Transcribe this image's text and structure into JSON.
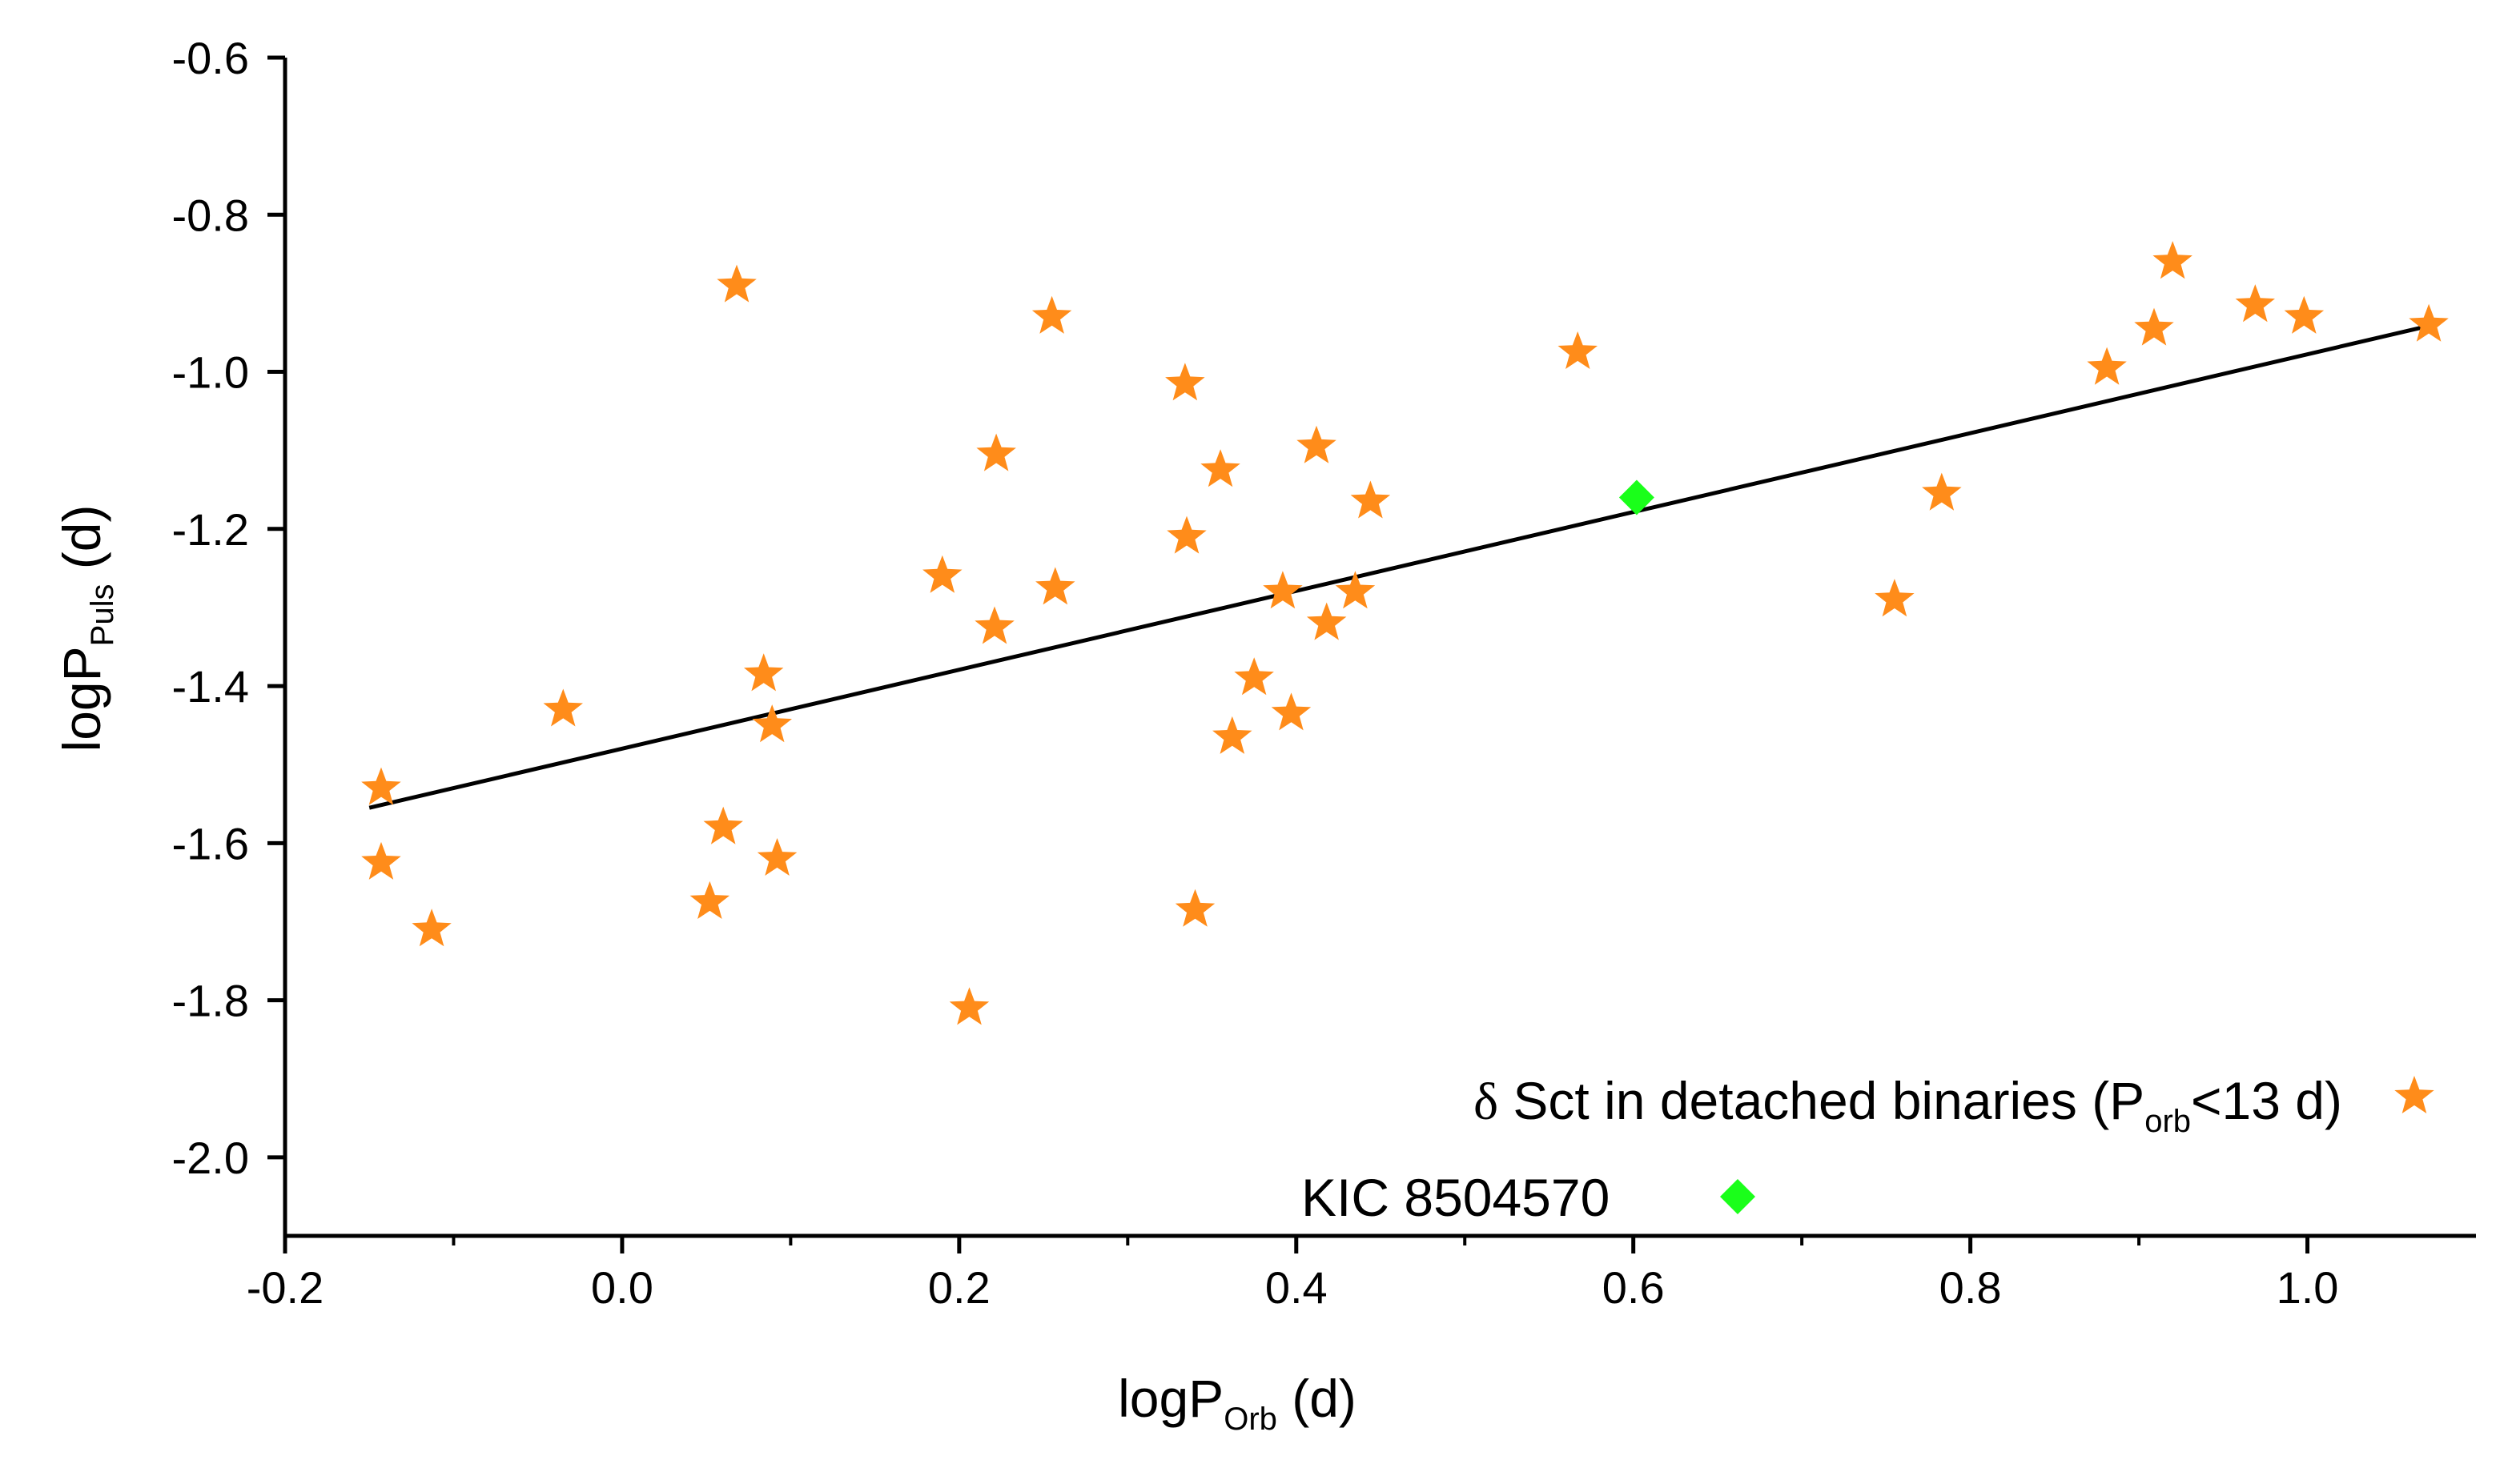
{
  "chart_data": {
    "type": "scatter",
    "xlabel": {
      "main": "logP",
      "sub": "Orb",
      "unit": " (d)"
    },
    "ylabel": {
      "main": "logP",
      "sub": "Puls",
      "unit": " (d)"
    },
    "xlim": [
      -0.2,
      1.1
    ],
    "ylim": [
      -2.1,
      -0.6
    ],
    "x_ticks": [
      -0.2,
      0.0,
      0.2,
      0.4,
      0.6,
      0.8,
      1.0
    ],
    "x_tick_labels": [
      "-0.2",
      "0.0",
      "0.2",
      "0.4",
      "0.6",
      "0.8",
      "1.0"
    ],
    "y_ticks": [
      -2.0,
      -1.8,
      -1.6,
      -1.4,
      -1.2,
      -1.0,
      -0.8,
      -0.6
    ],
    "y_tick_labels": [
      "-2.0",
      "-1.8",
      "-1.6",
      "-1.4",
      "-1.2",
      "-1.0",
      "-0.8",
      "-0.6"
    ],
    "grid": false,
    "series": [
      {
        "name": "δ Sct in detached binaries (Porb<13 d)",
        "legend": {
          "prefix": "δ",
          "main": " Sct in detached binaries (P",
          "sub": "orb",
          "suffix": "<13 d)"
        },
        "marker": "star",
        "color": "#ff8c1a",
        "points": [
          [
            -0.143,
            -1.53
          ],
          [
            -0.143,
            -1.625
          ],
          [
            -0.113,
            -1.71
          ],
          [
            -0.035,
            -1.43
          ],
          [
            0.052,
            -1.675
          ],
          [
            0.06,
            -1.58
          ],
          [
            0.068,
            -0.89
          ],
          [
            0.084,
            -1.385
          ],
          [
            0.089,
            -1.45
          ],
          [
            0.092,
            -1.62
          ],
          [
            0.19,
            -1.26
          ],
          [
            0.206,
            -1.81
          ],
          [
            0.221,
            -1.325
          ],
          [
            0.222,
            -1.105
          ],
          [
            0.255,
            -0.93
          ],
          [
            0.257,
            -1.275
          ],
          [
            0.334,
            -1.015
          ],
          [
            0.335,
            -1.21
          ],
          [
            0.34,
            -1.685
          ],
          [
            0.355,
            -1.125
          ],
          [
            0.362,
            -1.465
          ],
          [
            0.375,
            -1.39
          ],
          [
            0.392,
            -1.28
          ],
          [
            0.397,
            -1.435
          ],
          [
            0.412,
            -1.095
          ],
          [
            0.418,
            -1.32
          ],
          [
            0.435,
            -1.28
          ],
          [
            0.444,
            -1.165
          ],
          [
            0.567,
            -0.975
          ],
          [
            0.755,
            -1.29
          ],
          [
            0.783,
            -1.155
          ],
          [
            0.881,
            -0.995
          ],
          [
            0.909,
            -0.945
          ],
          [
            0.92,
            -0.86
          ],
          [
            0.969,
            -0.915
          ],
          [
            0.998,
            -0.93
          ],
          [
            1.072,
            -0.94
          ]
        ]
      },
      {
        "name": "KIC 8504570",
        "marker": "diamond",
        "color": "#1aff1a",
        "points": [
          [
            0.602,
            -1.16
          ]
        ]
      }
    ],
    "fit_line": {
      "x": [
        -0.15,
        1.075
      ],
      "y": [
        -1.555,
        -0.94
      ],
      "color": "#000000"
    },
    "legend_position": "bottom-right"
  }
}
